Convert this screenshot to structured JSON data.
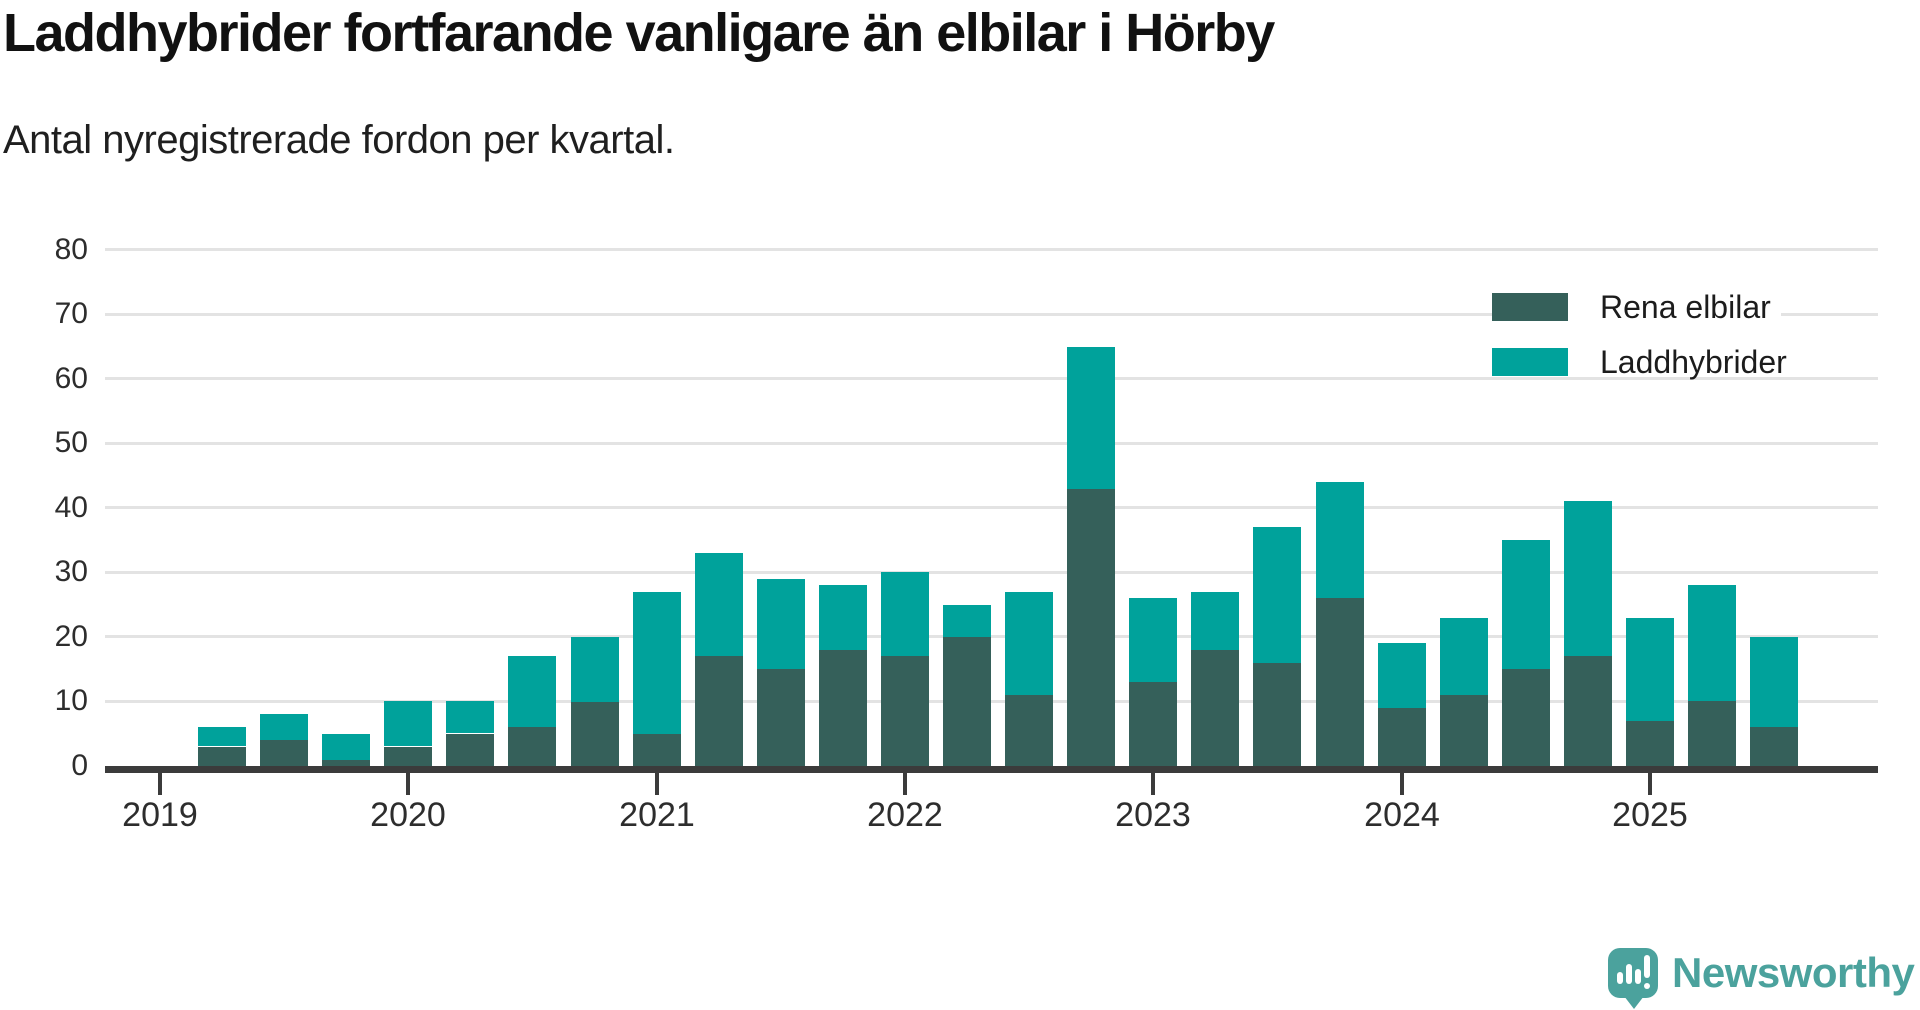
{
  "title": "Laddhybrider fortfarande vanligare än elbilar i Hörby",
  "subtitle": "Antal nyregistrerade fordon per kvartal.",
  "branding": {
    "wordmark": "Newsworthy"
  },
  "colors": {
    "elbilar": "#35605A",
    "laddhybrider": "#00A29B",
    "axis": "#3B3B3B",
    "gridline": "#E3E3E3",
    "text": "#1F1F1F",
    "brand": "#4BA29D"
  },
  "chart_data": {
    "type": "bar",
    "stacked": true,
    "title": "Laddhybrider fortfarande vanligare än elbilar i Hörby",
    "subtitle": "Antal nyregistrerade fordon per kvartal.",
    "xlabel": "",
    "ylabel": "",
    "ylim": [
      0,
      80
    ],
    "yticks": [
      0,
      10,
      20,
      30,
      40,
      50,
      60,
      70,
      80
    ],
    "grid": "horizontal",
    "legend_position": "top-right",
    "x": [
      "2019 Q1",
      "2019 Q2",
      "2019 Q3",
      "2019 Q4",
      "2020 Q1",
      "2020 Q2",
      "2020 Q3",
      "2020 Q4",
      "2021 Q1",
      "2021 Q2",
      "2021 Q3",
      "2021 Q4",
      "2022 Q1",
      "2022 Q2",
      "2022 Q3",
      "2022 Q4",
      "2023 Q1",
      "2023 Q2",
      "2023 Q3",
      "2023 Q4",
      "2024 Q1",
      "2024 Q2",
      "2024 Q3",
      "2024 Q4",
      "2025 Q1",
      "2025 Q2",
      "2025 Q3"
    ],
    "year_ticks": [
      {
        "label": "2019",
        "slot": 0
      },
      {
        "label": "2020",
        "slot": 4
      },
      {
        "label": "2021",
        "slot": 8
      },
      {
        "label": "2022",
        "slot": 12
      },
      {
        "label": "2023",
        "slot": 16
      },
      {
        "label": "2024",
        "slot": 20
      },
      {
        "label": "2025",
        "slot": 24
      }
    ],
    "series": [
      {
        "name": "Rena elbilar",
        "color": "#35605A",
        "values": [
          0,
          3,
          4,
          1,
          3,
          5,
          6,
          10,
          5,
          17,
          15,
          18,
          17,
          20,
          11,
          43,
          13,
          18,
          16,
          26,
          9,
          11,
          15,
          17,
          7,
          10,
          6
        ]
      },
      {
        "name": "Laddhybrider",
        "color": "#00A29B",
        "values": [
          0,
          3,
          4,
          4,
          7,
          5,
          11,
          10,
          22,
          16,
          14,
          10,
          13,
          5,
          16,
          22,
          13,
          9,
          21,
          18,
          10,
          12,
          20,
          24,
          16,
          18,
          14
        ]
      }
    ],
    "totals": [
      0,
      6,
      8,
      5,
      10,
      10,
      17,
      20,
      27,
      33,
      29,
      28,
      30,
      25,
      27,
      65,
      26,
      27,
      37,
      44,
      19,
      23,
      35,
      41,
      23,
      28,
      20
    ]
  }
}
